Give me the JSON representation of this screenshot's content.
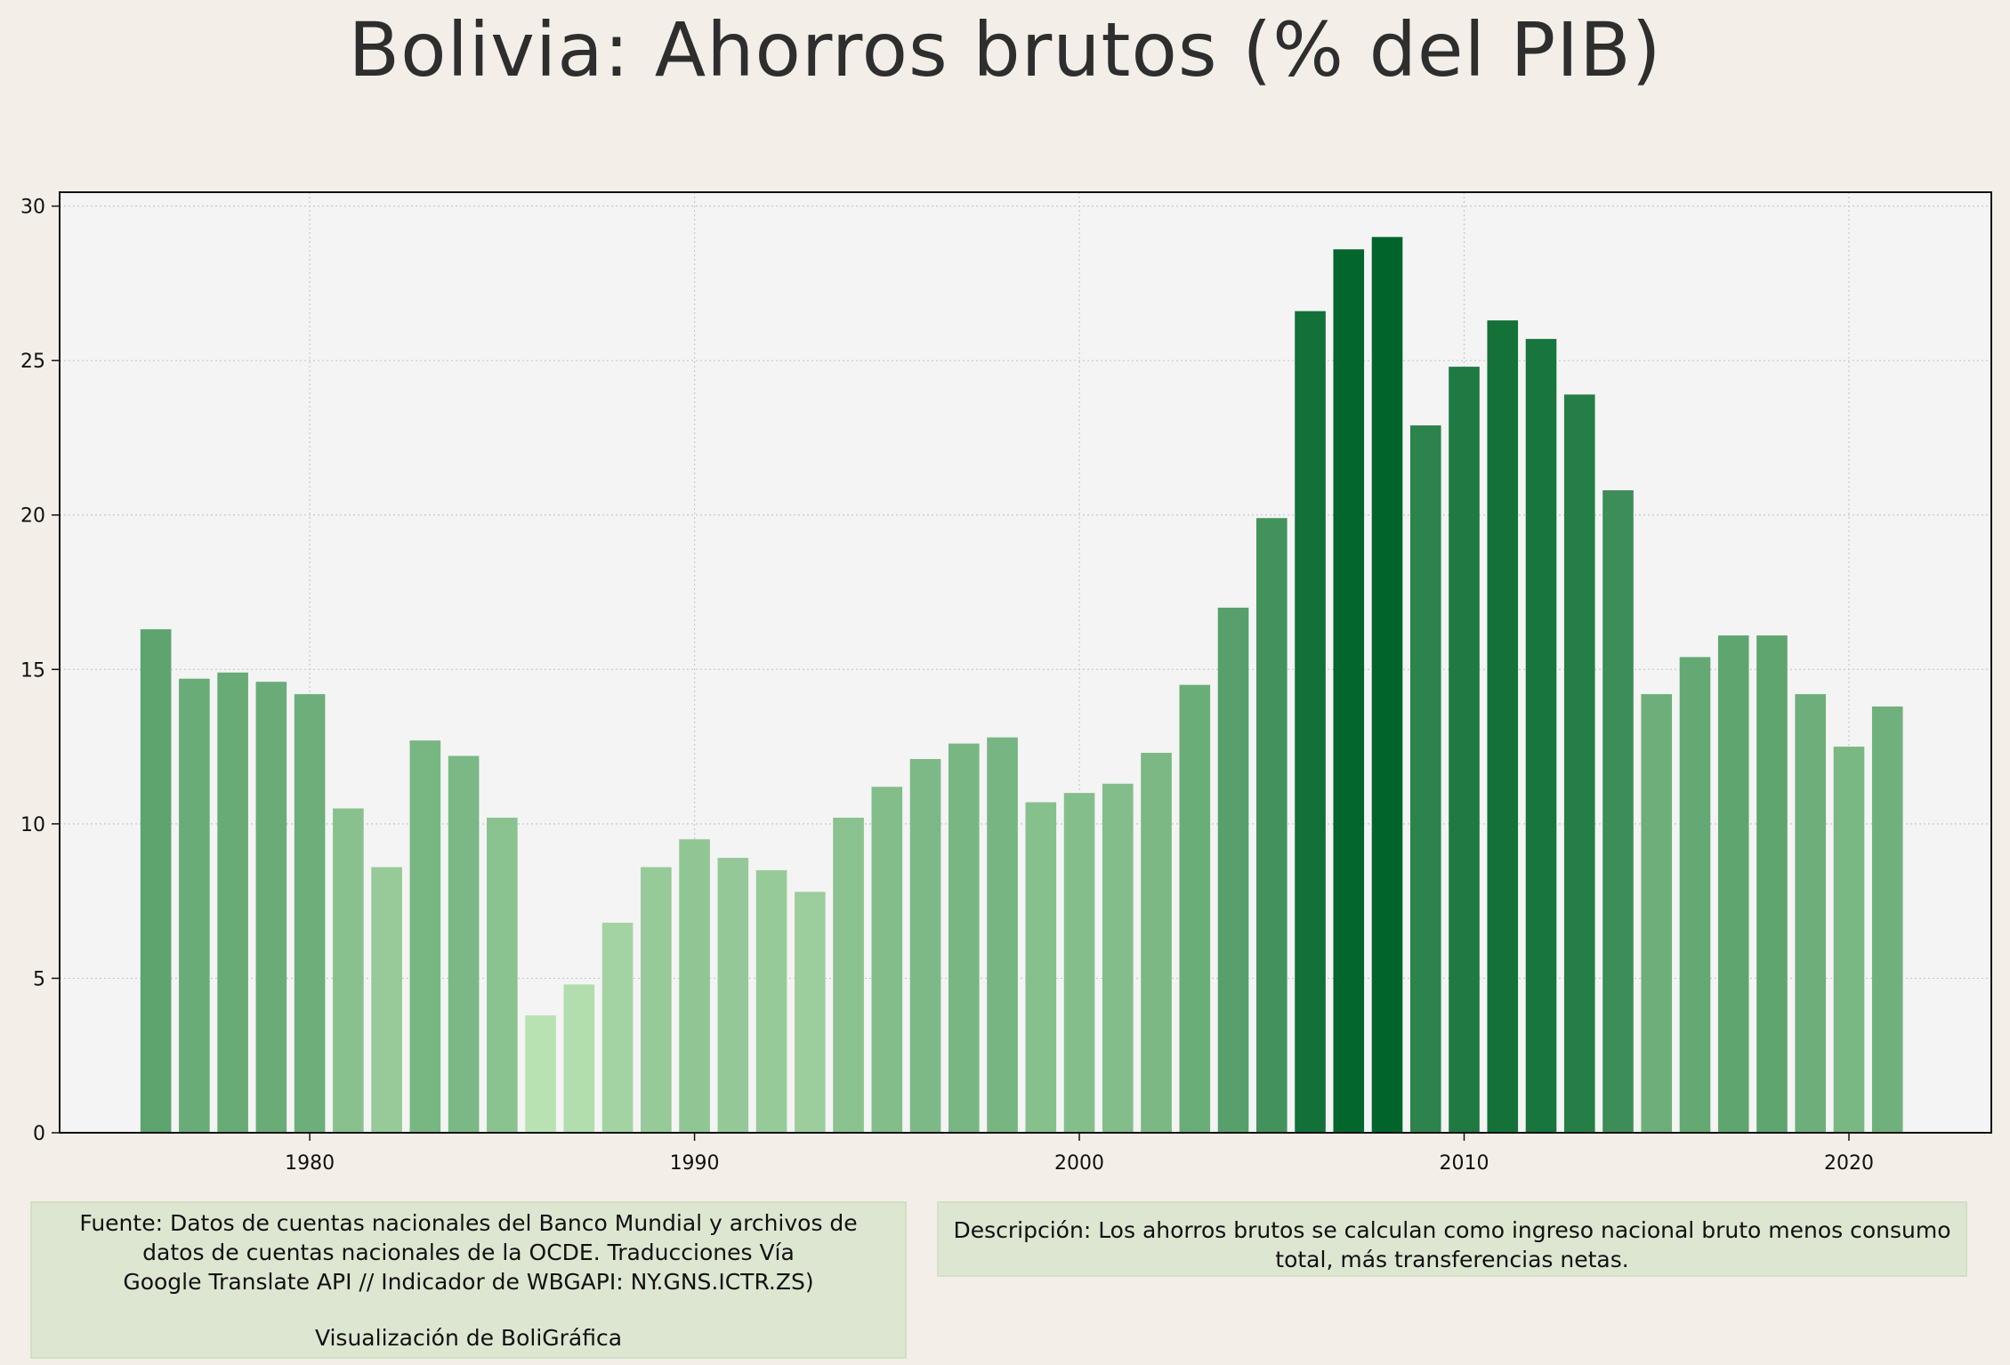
{
  "title": "Bolivia:  Ahorros brutos (% del PIB)",
  "chart_data": {
    "type": "bar",
    "title": "Bolivia:  Ahorros brutos (% del PIB)",
    "xlabel": "",
    "ylabel": "",
    "x": [
      1976,
      1977,
      1978,
      1979,
      1980,
      1981,
      1982,
      1983,
      1984,
      1985,
      1986,
      1987,
      1988,
      1989,
      1990,
      1991,
      1992,
      1993,
      1994,
      1995,
      1996,
      1997,
      1998,
      1999,
      2000,
      2001,
      2002,
      2003,
      2004,
      2005,
      2006,
      2007,
      2008,
      2009,
      2010,
      2011,
      2012,
      2013,
      2014,
      2015,
      2016,
      2017,
      2018,
      2019,
      2020,
      2021
    ],
    "values": [
      16.3,
      14.7,
      14.9,
      14.6,
      14.2,
      10.5,
      8.6,
      12.7,
      12.2,
      10.2,
      3.8,
      4.8,
      6.8,
      8.6,
      9.5,
      8.9,
      8.5,
      7.8,
      10.2,
      11.2,
      12.1,
      12.6,
      12.8,
      10.7,
      11.0,
      11.3,
      12.3,
      14.5,
      17.0,
      19.9,
      26.6,
      28.6,
      29.0,
      22.9,
      24.8,
      26.3,
      25.7,
      23.9,
      20.8,
      14.2,
      15.4,
      16.1,
      16.1,
      14.2,
      12.5,
      13.8
    ],
    "xlim": [
      1973.5,
      2023.7
    ],
    "ylim": [
      0,
      30.45
    ],
    "xticks": [
      1980,
      1990,
      2000,
      2010,
      2020
    ],
    "yticks": [
      0,
      5,
      10,
      15,
      20,
      25,
      30
    ],
    "grid": true,
    "colormap": "greens",
    "colors": {
      "background": "#f3efe8",
      "plot_background": "#f4f4f4",
      "bar_light": "#b9e2b2",
      "bar_dark": "#00642b",
      "note_box": "#dde6d1"
    }
  },
  "notes": {
    "source_lines": [
      "Fuente: Datos de cuentas nacionales del Banco Mundial y archivos de",
      "datos de cuentas nacionales de la OCDE. Traducciones Vía",
      "Google Translate API // Indicador de WBGAPI: NY.GNS.ICTR.ZS)"
    ],
    "credit": "Visualización de BoliGráfica",
    "description_lines": [
      "Descripción: Los ahorros brutos se calculan como ingreso nacional bruto menos consumo",
      "total, más transferencias netas."
    ]
  }
}
